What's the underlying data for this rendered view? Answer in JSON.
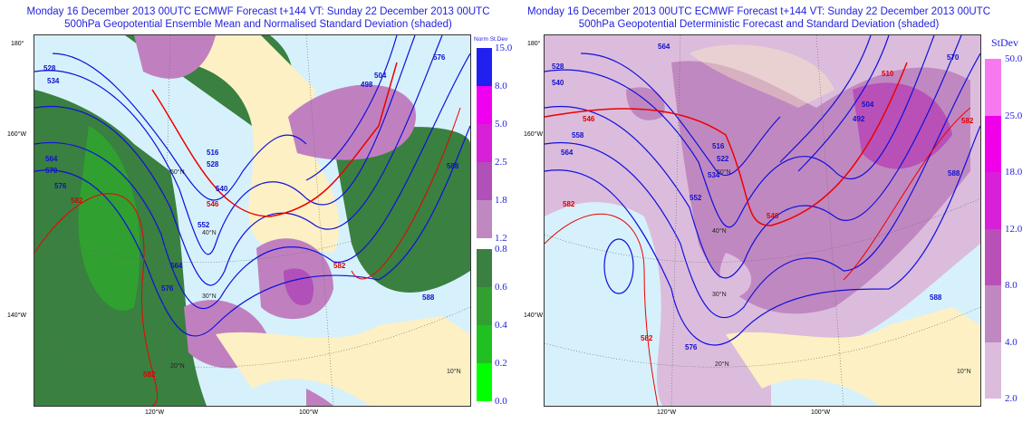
{
  "left": {
    "title_line1": "Monday 16 December 2013 00UTC ECMWF Forecast t+144  VT: Sunday 22 December 2013 00UTC",
    "title_line2": "500hPa Geopotential Ensemble Mean and Normalised Standard Deviation (shaded)",
    "legend_title": "Norm St.Dev",
    "legend_labels": [
      "15.0",
      "8.0",
      "5.0",
      "2.5",
      "1.8",
      "1.2",
      "0.8",
      "0.6",
      "0.4",
      "0.2",
      "0.0"
    ],
    "legend_colors": [
      "#2020f0",
      "#f000f0",
      "#d820d8",
      "#b050b8",
      "#c088c0",
      "#3a8040",
      "#30a030",
      "#20c020",
      "#00ff00"
    ],
    "contours": [
      "528",
      "534",
      "540",
      "546",
      "552",
      "558",
      "564",
      "570",
      "576",
      "582",
      "588",
      "510",
      "516",
      "522",
      "498",
      "504",
      "492"
    ],
    "lat_labels": [
      "20°N",
      "30°N",
      "40°N",
      "50°N",
      "10°N"
    ]
  },
  "right": {
    "title_line1": "Monday 16 December 2013 00UTC ECMWF Forecast t+144  VT: Sunday 22 December 2013 00UTC",
    "title_line2": "500hPa Geopotential Deterministic Forecast and Standard Deviation (shaded)",
    "legend_title": "StDev",
    "legend_labels": [
      "50.0",
      "25.0",
      "18.0",
      "12.0",
      "8.0",
      "4.0",
      "2.0"
    ],
    "legend_colors": [
      "#f878f0",
      "#f000e8",
      "#d820d8",
      "#b850b8",
      "#c088c0",
      "#dcbcdc"
    ],
    "contours": [
      "528",
      "534",
      "540",
      "546",
      "552",
      "558",
      "564",
      "570",
      "576",
      "582",
      "588",
      "510",
      "516",
      "522",
      "498",
      "504",
      "492"
    ],
    "lat_labels": [
      "20°N",
      "30°N",
      "40°N",
      "50°N",
      "10°N"
    ]
  },
  "axes": {
    "lon_left": [
      "180°",
      "160°W",
      "140°W"
    ],
    "lon_bottom": [
      "120°W",
      "100°W"
    ]
  }
}
